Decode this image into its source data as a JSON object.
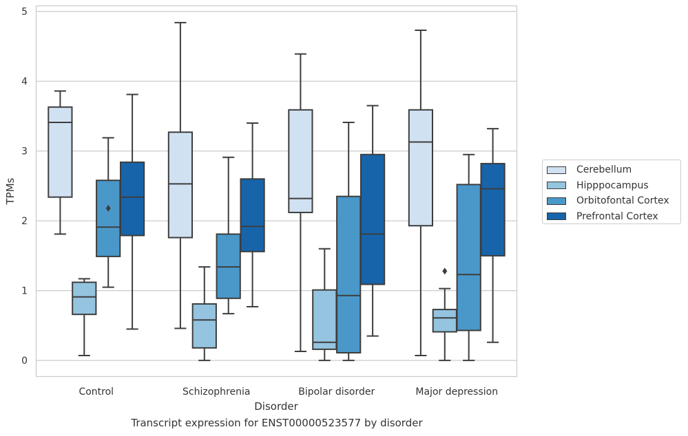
{
  "chart_data": {
    "type": "box",
    "title": "",
    "caption": "Transcript expression for ENST00000523577 by disorder",
    "xlabel": "Disorder",
    "ylabel": "TPMs",
    "ylim": [
      -0.23,
      5.08
    ],
    "yticks": [
      0,
      1,
      2,
      3,
      4,
      5
    ],
    "grid": true,
    "legend_position": "right",
    "categories": [
      "Control",
      "Schizophrenia",
      "Bipolar disorder",
      "Major depression"
    ],
    "series": [
      {
        "name": "Cerebellum",
        "color": "#d0e1f2",
        "boxes": [
          {
            "whislo": 1.81,
            "q1": 2.34,
            "med": 3.41,
            "q3": 3.63,
            "whishi": 3.86,
            "fliers": []
          },
          {
            "whislo": 0.46,
            "q1": 1.76,
            "med": 2.53,
            "q3": 3.27,
            "whishi": 4.84,
            "fliers": []
          },
          {
            "whislo": 0.13,
            "q1": 2.12,
            "med": 2.32,
            "q3": 3.59,
            "whishi": 4.39,
            "fliers": []
          },
          {
            "whislo": 0.07,
            "q1": 1.93,
            "med": 3.13,
            "q3": 3.59,
            "whishi": 4.73,
            "fliers": []
          }
        ]
      },
      {
        "name": "Hipppocampus",
        "color": "#94c4df",
        "boxes": [
          {
            "whislo": 0.07,
            "q1": 0.66,
            "med": 0.91,
            "q3": 1.12,
            "whishi": 1.17,
            "fliers": []
          },
          {
            "whislo": 0.0,
            "q1": 0.18,
            "med": 0.58,
            "q3": 0.81,
            "whishi": 1.34,
            "fliers": []
          },
          {
            "whislo": 0.0,
            "q1": 0.16,
            "med": 0.26,
            "q3": 1.01,
            "whishi": 1.6,
            "fliers": []
          },
          {
            "whislo": 0.0,
            "q1": 0.41,
            "med": 0.61,
            "q3": 0.73,
            "whishi": 1.03,
            "fliers": [
              1.28
            ]
          }
        ]
      },
      {
        "name": "Orbitofontal Cortex",
        "color": "#4a98c9",
        "boxes": [
          {
            "whislo": 1.05,
            "q1": 1.49,
            "med": 1.91,
            "q3": 2.58,
            "whishi": 3.19,
            "fliers": [
              2.18
            ]
          },
          {
            "whislo": 0.67,
            "q1": 0.89,
            "med": 1.34,
            "q3": 1.81,
            "whishi": 2.91,
            "fliers": []
          },
          {
            "whislo": 0.0,
            "q1": 0.11,
            "med": 0.93,
            "q3": 2.35,
            "whishi": 3.41,
            "fliers": []
          },
          {
            "whislo": 0.0,
            "q1": 0.43,
            "med": 1.23,
            "q3": 2.52,
            "whishi": 2.95,
            "fliers": []
          }
        ]
      },
      {
        "name": "Prefrontal Cortex",
        "color": "#1764ab",
        "boxes": [
          {
            "whislo": 0.45,
            "q1": 1.79,
            "med": 2.34,
            "q3": 2.84,
            "whishi": 3.81,
            "fliers": []
          },
          {
            "whislo": 0.77,
            "q1": 1.56,
            "med": 1.92,
            "q3": 2.6,
            "whishi": 3.4,
            "fliers": []
          },
          {
            "whislo": 0.35,
            "q1": 1.09,
            "med": 1.81,
            "q3": 2.95,
            "whishi": 3.65,
            "fliers": []
          },
          {
            "whislo": 0.26,
            "q1": 1.5,
            "med": 2.46,
            "q3": 2.82,
            "whishi": 3.32,
            "fliers": []
          }
        ]
      }
    ]
  }
}
